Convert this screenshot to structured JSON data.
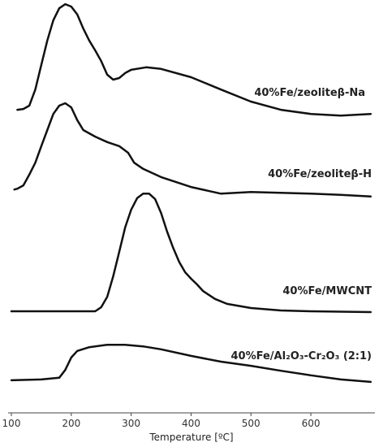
{
  "chart_data": {
    "type": "line",
    "x_label": "Temperature [ºC]",
    "xlim": [
      100,
      707
    ],
    "xticks": [
      100,
      200,
      300,
      400,
      500,
      600
    ],
    "ylim": [
      0,
      100
    ],
    "series": [
      {
        "name": "40%Fe/zeoliteβ-Na",
        "color": "#111111",
        "x": [
          110,
          120,
          130,
          140,
          150,
          160,
          170,
          180,
          190,
          200,
          210,
          220,
          230,
          240,
          250,
          260,
          270,
          280,
          290,
          300,
          325,
          350,
          400,
          450,
          500,
          550,
          600,
          650,
          700
        ],
        "values": [
          73.4,
          73.6,
          74.4,
          78.3,
          84.3,
          90.2,
          95.1,
          98.0,
          99.0,
          98.4,
          96.5,
          93.1,
          90.2,
          87.8,
          85.2,
          81.9,
          80.7,
          81.1,
          82.3,
          83.1,
          83.7,
          83.3,
          81.3,
          78.3,
          75.4,
          73.4,
          72.4,
          72.0,
          72.4
        ]
      },
      {
        "name": "40%Fe/zeoliteβ-H",
        "color": "#111111",
        "x": [
          105,
          110,
          120,
          130,
          140,
          150,
          160,
          170,
          180,
          190,
          200,
          210,
          220,
          240,
          260,
          280,
          295,
          305,
          320,
          350,
          400,
          450,
          500,
          550,
          600,
          650,
          700
        ],
        "values": [
          54.1,
          54.3,
          55.1,
          57.7,
          60.6,
          64.6,
          68.5,
          72.4,
          74.4,
          75.0,
          74.0,
          70.9,
          68.5,
          66.9,
          65.6,
          64.6,
          63.0,
          60.6,
          59.1,
          57.1,
          54.7,
          53.1,
          53.5,
          53.3,
          53.1,
          52.8,
          52.4
        ]
      },
      {
        "name": "40%Fe/MWCNT",
        "color": "#111111",
        "x": [
          100,
          150,
          200,
          240,
          250,
          260,
          270,
          280,
          290,
          300,
          310,
          320,
          330,
          340,
          350,
          360,
          370,
          380,
          390,
          400,
          410,
          420,
          440,
          460,
          500,
          550,
          600,
          700
        ],
        "values": [
          24.6,
          24.6,
          24.6,
          24.6,
          25.6,
          28.1,
          33.1,
          39.0,
          44.9,
          49.2,
          52.0,
          53.1,
          53.1,
          51.8,
          48.4,
          43.9,
          40.0,
          36.6,
          34.1,
          32.5,
          31.1,
          29.5,
          27.6,
          26.4,
          25.4,
          24.8,
          24.6,
          24.4
        ]
      },
      {
        "name": "40%Fe/Al₂O₃-Cr₂O₃ (2:1)",
        "color": "#111111",
        "x": [
          100,
          150,
          180,
          190,
          200,
          210,
          230,
          260,
          290,
          320,
          350,
          400,
          450,
          500,
          550,
          600,
          650,
          700
        ],
        "values": [
          7.9,
          8.1,
          8.5,
          10.4,
          13.4,
          15.0,
          15.9,
          16.5,
          16.5,
          16.1,
          15.4,
          13.8,
          12.4,
          11.4,
          10.2,
          9.1,
          8.1,
          7.5
        ]
      }
    ]
  }
}
